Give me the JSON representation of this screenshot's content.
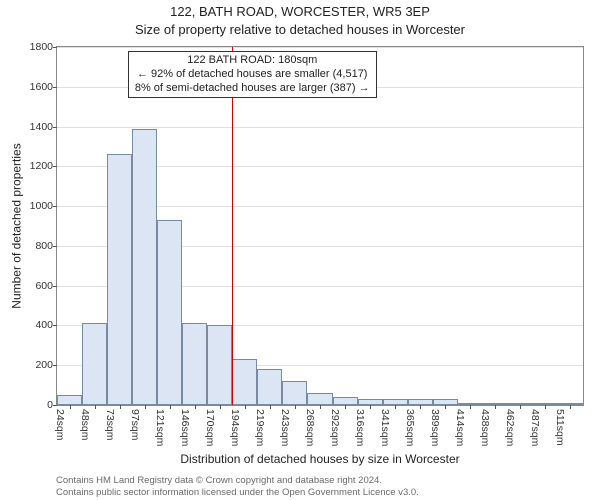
{
  "title_main": "122, BATH ROAD, WORCESTER, WR5 3EP",
  "title_sub": "Size of property relative to detached houses in Worcester",
  "ylabel": "Number of detached properties",
  "xlabel": "Distribution of detached houses by size in Worcester",
  "chart": {
    "type": "histogram",
    "background_color": "#ffffff",
    "grid_color": "#e0e0e0",
    "axis_color": "#888888",
    "bar_fill": "#dbe5f4",
    "bar_border": "#7a8aa3",
    "ref_line_color": "#d00000",
    "ylim": [
      0,
      1800
    ],
    "ytick_step": 200,
    "ytick_labels": [
      "0",
      "200",
      "400",
      "600",
      "800",
      "1000",
      "1200",
      "1400",
      "1600",
      "1800"
    ],
    "xtick_labels": [
      "24sqm",
      "48sqm",
      "73sqm",
      "97sqm",
      "121sqm",
      "146sqm",
      "170sqm",
      "194sqm",
      "219sqm",
      "243sqm",
      "268sqm",
      "292sqm",
      "316sqm",
      "341sqm",
      "365sqm",
      "389sqm",
      "414sqm",
      "438sqm",
      "462sqm",
      "487sqm",
      "511sqm"
    ],
    "values": [
      50,
      410,
      1260,
      1390,
      930,
      410,
      400,
      230,
      180,
      120,
      60,
      40,
      30,
      30,
      30,
      30,
      10,
      5,
      5,
      5,
      5
    ],
    "bar_width_ratio": 1.0,
    "ref_line_bin_index": 7,
    "ref_line_align": "left",
    "tick_fontsize": 10.5,
    "label_fontsize": 12,
    "title_fontsize": 13
  },
  "annotation": {
    "line1": "122 BATH ROAD: 180sqm",
    "line2": "← 92% of detached houses are smaller (4,517)",
    "line3": "8% of semi-detached houses are larger (387) →",
    "border_color": "#333333",
    "background": "#ffffff",
    "fontsize": 11
  },
  "footer": {
    "line1": "Contains HM Land Registry data © Crown copyright and database right 2024.",
    "line2": "Contains public sector information licensed under the Open Government Licence v3.0."
  }
}
